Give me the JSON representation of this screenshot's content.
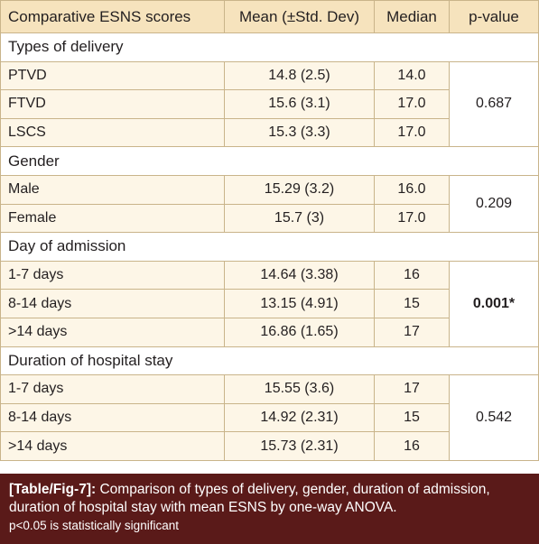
{
  "header": [
    "Comparative ESNS scores",
    "Mean (±Std. Dev)",
    "Median",
    "p-value"
  ],
  "sections": [
    {
      "title": "Types of delivery",
      "p_value": "0.687",
      "rows": [
        [
          "PTVD",
          "14.8 (2.5)",
          "14.0"
        ],
        [
          "FTVD",
          "15.6 (3.1)",
          "17.0"
        ],
        [
          "LSCS",
          "15.3 (3.3)",
          "17.0"
        ]
      ]
    },
    {
      "title": "Gender",
      "p_value": "0.209",
      "rows": [
        [
          "Male",
          "15.29 (3.2)",
          "16.0"
        ],
        [
          "Female",
          "15.7 (3)",
          "17.0"
        ]
      ]
    },
    {
      "title": "Day of admission",
      "p_value": "0.001*",
      "rows": [
        [
          "1-7 days",
          "14.64 (3.38)",
          "16"
        ],
        [
          "8-14 days",
          "13.15 (4.91)",
          "15"
        ],
        [
          ">14 days",
          "16.86 (1.65)",
          "17"
        ]
      ]
    },
    {
      "title": "Duration of hospital stay",
      "p_value": "0.542",
      "rows": [
        [
          "1-7 days",
          "15.55 (3.6)",
          "17"
        ],
        [
          "8-14 days",
          "14.92 (2.31)",
          "15"
        ],
        [
          ">14 days",
          "15.73 (2.31)",
          "16"
        ]
      ]
    }
  ],
  "caption": {
    "label": "[Table/Fig-7]:",
    "text": "Comparison of types of delivery, gender, duration of admission, duration of hospital stay with mean ESNS by one-way ANOVA.",
    "note": "p<0.05 is statistically significant"
  }
}
